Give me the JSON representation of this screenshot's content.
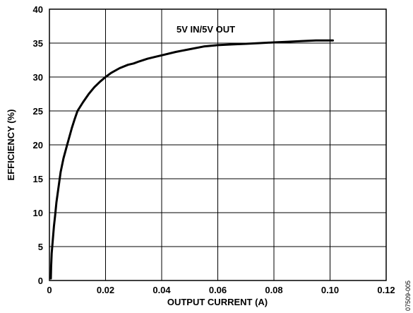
{
  "chart_data": {
    "type": "line",
    "xlabel": "OUTPUT CURRENT (A)",
    "ylabel": "EFFICIENCY (%)",
    "xlim": [
      0,
      0.12
    ],
    "ylim": [
      0,
      40
    ],
    "x_ticks": [
      0,
      0.02,
      0.04,
      0.06,
      0.08,
      0.1,
      0.12
    ],
    "x_tick_labels": [
      "0",
      "0.02",
      "0.04",
      "0.06",
      "0.08",
      "0.10",
      "0.12"
    ],
    "y_ticks": [
      0,
      5,
      10,
      15,
      20,
      25,
      30,
      35,
      40
    ],
    "y_tick_labels": [
      "0",
      "5",
      "10",
      "15",
      "20",
      "25",
      "30",
      "35",
      "40"
    ],
    "grid": true,
    "series": [
      {
        "name": "5V IN/5V OUT",
        "x": [
          0.0005,
          0.0006,
          0.0008,
          0.001,
          0.0013,
          0.0016,
          0.002,
          0.0025,
          0.003,
          0.0035,
          0.004,
          0.005,
          0.006,
          0.007,
          0.008,
          0.009,
          0.01,
          0.012,
          0.014,
          0.016,
          0.018,
          0.02,
          0.022,
          0.025,
          0.028,
          0.03,
          0.032,
          0.035,
          0.038,
          0.04,
          0.045,
          0.05,
          0.055,
          0.06,
          0.065,
          0.07,
          0.075,
          0.08,
          0.085,
          0.09,
          0.095,
          0.101
        ],
        "y": [
          0.3,
          2.0,
          4.0,
          5.0,
          6.5,
          8.0,
          9.5,
          11.5,
          13.0,
          14.5,
          16.0,
          18.0,
          19.5,
          21.0,
          22.5,
          23.8,
          25.0,
          26.3,
          27.5,
          28.5,
          29.3,
          30.0,
          30.6,
          31.3,
          31.8,
          32.0,
          32.3,
          32.7,
          33.0,
          33.2,
          33.7,
          34.1,
          34.5,
          34.7,
          34.8,
          34.9,
          35.0,
          35.1,
          35.2,
          35.3,
          35.4,
          35.4
        ]
      }
    ],
    "series_label": "5V IN/5V OUT"
  },
  "figure_id": "07509-005"
}
